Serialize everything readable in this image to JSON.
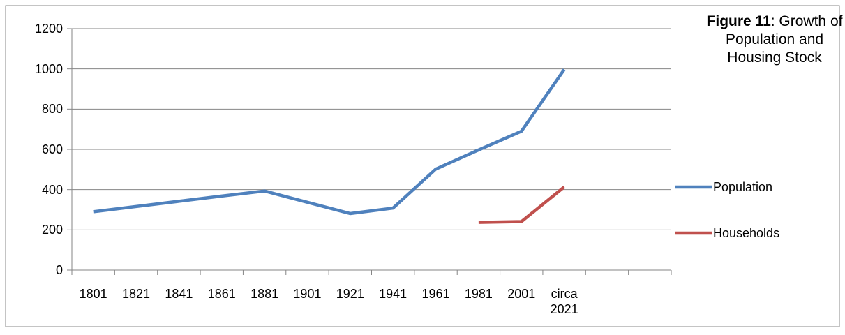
{
  "chart_data": {
    "type": "line",
    "title_label": "Figure 11",
    "title_text": ": Growth of Population and Housing Stock",
    "categories": [
      "1801",
      "1821",
      "1841",
      "1861",
      "1881",
      "1901",
      "1921",
      "1941",
      "1961",
      "1981",
      "2001",
      "circa 2021",
      null,
      null
    ],
    "series": [
      {
        "name": "Population",
        "color": "#4f81bd",
        "values": [
          290,
          316,
          342,
          368,
          393,
          337,
          281,
          308,
          502,
          597,
          690,
          997,
          null,
          null
        ]
      },
      {
        "name": "Households",
        "color": "#c0504d",
        "values": [
          null,
          null,
          null,
          null,
          null,
          null,
          null,
          null,
          null,
          237,
          241,
          413,
          null,
          null
        ]
      }
    ],
    "ylim": [
      0,
      1200
    ],
    "yticks": [
      0,
      200,
      400,
      600,
      800,
      1000,
      1200
    ],
    "grid": true
  }
}
